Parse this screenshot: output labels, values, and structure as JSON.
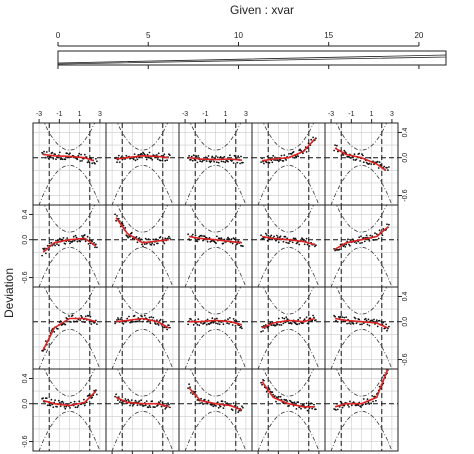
{
  "chart_data": {
    "type": "coplot",
    "given": {
      "title": "Given : xvar",
      "ticks": [
        0,
        5,
        10,
        15,
        20
      ],
      "range": [
        0,
        21.5
      ],
      "shape": "single wedge bar from 0 to 21.5"
    },
    "panel_ylabel": "Deviation",
    "x_ticks": [
      -3,
      -1,
      1,
      3
    ],
    "x_tick_labels": [
      "-3",
      "-1",
      "1",
      "3"
    ],
    "xlim": [
      -3.6,
      3.6
    ],
    "y_ticks": [
      0.4,
      0.0,
      -0.6
    ],
    "y_tick_labels": [
      "0.4",
      "0.0",
      "-0.6"
    ],
    "ylim": [
      -0.75,
      0.55
    ],
    "grid": true,
    "layout": {
      "rows": 4,
      "cols": 5
    },
    "series_types": [
      "observations (points)",
      "loess smooth (red line)",
      "reference lines at 0 and +/-2 (dashed)",
      "confidence envelope (dash-dot)"
    ],
    "colors": {
      "smooth": "#dd2222",
      "points": "#111111",
      "envelope": "#333333",
      "grid": "#cccccc"
    },
    "panels": [
      {
        "row": 1,
        "col": 1,
        "smooth": [
          [
            -2.6,
            0.05
          ],
          [
            -1.5,
            0.03
          ],
          [
            0,
            0.02
          ],
          [
            1.5,
            0.0
          ],
          [
            2.4,
            -0.05
          ]
        ]
      },
      {
        "row": 1,
        "col": 2,
        "smooth": [
          [
            -2.6,
            -0.02
          ],
          [
            -1.5,
            0.0
          ],
          [
            0,
            0.03
          ],
          [
            1.5,
            0.02
          ],
          [
            2.6,
            0.0
          ]
        ]
      },
      {
        "row": 1,
        "col": 3,
        "smooth": [
          [
            -2.6,
            0.0
          ],
          [
            -1.5,
            -0.02
          ],
          [
            0,
            -0.03
          ],
          [
            1.5,
            -0.02
          ],
          [
            2.6,
            -0.04
          ]
        ]
      },
      {
        "row": 1,
        "col": 4,
        "smooth": [
          [
            -2.6,
            -0.05
          ],
          [
            -1.5,
            -0.02
          ],
          [
            0,
            0.0
          ],
          [
            1.5,
            0.1
          ],
          [
            2.6,
            0.3
          ]
        ]
      },
      {
        "row": 1,
        "col": 5,
        "smooth": [
          [
            -2.6,
            0.15
          ],
          [
            -1.5,
            0.05
          ],
          [
            0,
            0.0
          ],
          [
            1.5,
            -0.1
          ],
          [
            2.4,
            -0.2
          ]
        ]
      },
      {
        "row": 2,
        "col": 1,
        "smooth": [
          [
            -2.6,
            -0.2
          ],
          [
            -1.5,
            -0.05
          ],
          [
            0,
            0.0
          ],
          [
            1.5,
            0.02
          ],
          [
            2.6,
            -0.1
          ]
        ]
      },
      {
        "row": 2,
        "col": 2,
        "smooth": [
          [
            -2.6,
            0.35
          ],
          [
            -1.5,
            0.1
          ],
          [
            0,
            -0.05
          ],
          [
            1.5,
            -0.02
          ],
          [
            2.6,
            0.0
          ]
        ]
      },
      {
        "row": 2,
        "col": 3,
        "smooth": [
          [
            -2.6,
            0.05
          ],
          [
            -1.5,
            0.02
          ],
          [
            0,
            0.0
          ],
          [
            1.5,
            -0.03
          ],
          [
            2.6,
            -0.05
          ]
        ]
      },
      {
        "row": 2,
        "col": 4,
        "smooth": [
          [
            -2.6,
            0.05
          ],
          [
            -1.5,
            0.02
          ],
          [
            0,
            0.0
          ],
          [
            1.5,
            -0.03
          ],
          [
            2.6,
            -0.08
          ]
        ]
      },
      {
        "row": 2,
        "col": 5,
        "smooth": [
          [
            -2.6,
            -0.15
          ],
          [
            -1.5,
            -0.05
          ],
          [
            0,
            0.0
          ],
          [
            1.5,
            0.05
          ],
          [
            2.6,
            0.2
          ]
        ]
      },
      {
        "row": 3,
        "col": 1,
        "smooth": [
          [
            -2.6,
            -0.45
          ],
          [
            -1.5,
            -0.1
          ],
          [
            0,
            0.05
          ],
          [
            1.5,
            0.05
          ],
          [
            2.6,
            0.0
          ]
        ]
      },
      {
        "row": 3,
        "col": 2,
        "smooth": [
          [
            -2.6,
            0.0
          ],
          [
            -1.5,
            0.02
          ],
          [
            0,
            0.05
          ],
          [
            1.5,
            0.0
          ],
          [
            2.6,
            -0.1
          ]
        ]
      },
      {
        "row": 3,
        "col": 3,
        "smooth": [
          [
            -2.6,
            0.0
          ],
          [
            -1.5,
            0.0
          ],
          [
            0,
            0.02
          ],
          [
            1.5,
            0.0
          ],
          [
            2.6,
            -0.05
          ]
        ]
      },
      {
        "row": 3,
        "col": 4,
        "smooth": [
          [
            -2.6,
            -0.1
          ],
          [
            -1.5,
            -0.02
          ],
          [
            0,
            0.02
          ],
          [
            1.5,
            0.0
          ],
          [
            2.6,
            0.05
          ]
        ]
      },
      {
        "row": 3,
        "col": 5,
        "smooth": [
          [
            -2.6,
            0.05
          ],
          [
            -1.5,
            0.02
          ],
          [
            0,
            0.0
          ],
          [
            1.5,
            -0.02
          ],
          [
            2.6,
            -0.1
          ]
        ]
      },
      {
        "row": 4,
        "col": 1,
        "smooth": [
          [
            -2.6,
            0.05
          ],
          [
            -1.5,
            0.0
          ],
          [
            0,
            -0.03
          ],
          [
            1.5,
            0.02
          ],
          [
            2.6,
            0.2
          ]
        ]
      },
      {
        "row": 4,
        "col": 2,
        "smooth": [
          [
            -2.6,
            0.1
          ],
          [
            -1.5,
            0.02
          ],
          [
            0,
            0.0
          ],
          [
            1.5,
            0.0
          ],
          [
            2.6,
            -0.05
          ]
        ]
      },
      {
        "row": 4,
        "col": 3,
        "smooth": [
          [
            -2.6,
            0.25
          ],
          [
            -1.5,
            0.05
          ],
          [
            0,
            0.0
          ],
          [
            1.5,
            -0.03
          ],
          [
            2.6,
            -0.1
          ]
        ]
      },
      {
        "row": 4,
        "col": 4,
        "smooth": [
          [
            -2.6,
            0.35
          ],
          [
            -1.5,
            0.1
          ],
          [
            0,
            0.0
          ],
          [
            1.5,
            -0.05
          ],
          [
            2.6,
            -0.05
          ]
        ]
      },
      {
        "row": 4,
        "col": 5,
        "smooth": [
          [
            -2.6,
            -0.05
          ],
          [
            -1.5,
            0.0
          ],
          [
            0,
            0.0
          ],
          [
            1.5,
            0.1
          ],
          [
            2.6,
            0.55
          ]
        ]
      }
    ]
  }
}
